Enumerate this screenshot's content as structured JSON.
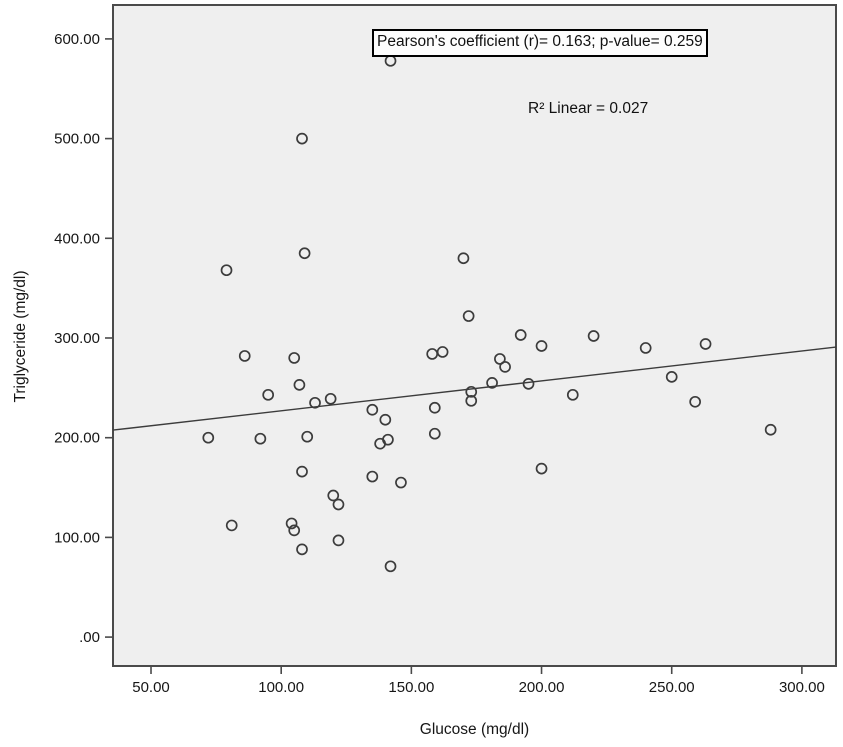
{
  "figure": {
    "annotations": {
      "pearson": "Pearson's coefficient (r)= 0.163; p-value= 0.259",
      "r_squared": "R² Linear = 0.027"
    }
  },
  "chart_data": {
    "type": "scatter",
    "title": "",
    "xlabel": "Glucose (mg/dl)",
    "ylabel": "Triglyceride (mg/dl)",
    "xlim": [
      35.4,
      313.1
    ],
    "ylim": [
      -29,
      634
    ],
    "grid": false,
    "legend": null,
    "x_ticks": {
      "values": [
        50,
        100,
        150,
        200,
        250,
        300
      ],
      "labels": [
        "50.00",
        "100.00",
        "150.00",
        "200.00",
        "250.00",
        "300.00"
      ]
    },
    "y_ticks": {
      "values": [
        600,
        500,
        400,
        300,
        200,
        100,
        0
      ],
      "labels": [
        "600.00",
        "500.00",
        "400.00",
        "300.00",
        "200.00",
        "100.00",
        ".00"
      ]
    },
    "points": [
      [
        142,
        578
      ],
      [
        108,
        500
      ],
      [
        109,
        385
      ],
      [
        79,
        368
      ],
      [
        170,
        380
      ],
      [
        172,
        322
      ],
      [
        86,
        282
      ],
      [
        105,
        280
      ],
      [
        158,
        284
      ],
      [
        162,
        286
      ],
      [
        107,
        253
      ],
      [
        95,
        243
      ],
      [
        113,
        235
      ],
      [
        119,
        239
      ],
      [
        173,
        246
      ],
      [
        173,
        237
      ],
      [
        135,
        228
      ],
      [
        140,
        218
      ],
      [
        159,
        230
      ],
      [
        159,
        204
      ],
      [
        72,
        200
      ],
      [
        92,
        199
      ],
      [
        110,
        201
      ],
      [
        138,
        194
      ],
      [
        141,
        198
      ],
      [
        108,
        166
      ],
      [
        135,
        161
      ],
      [
        146,
        155
      ],
      [
        120,
        142
      ],
      [
        122,
        133
      ],
      [
        81,
        112
      ],
      [
        104,
        114
      ],
      [
        105,
        107
      ],
      [
        122,
        97
      ],
      [
        108,
        88
      ],
      [
        142,
        71
      ],
      [
        192,
        303
      ],
      [
        200,
        292
      ],
      [
        220,
        302
      ],
      [
        240,
        290
      ],
      [
        263,
        294
      ],
      [
        184,
        279
      ],
      [
        186,
        271
      ],
      [
        181,
        255
      ],
      [
        195,
        254
      ],
      [
        212,
        243
      ],
      [
        250,
        261
      ],
      [
        259,
        236
      ],
      [
        288,
        208
      ],
      [
        200,
        169
      ]
    ],
    "trendline": {
      "x1": 35.4,
      "y1": 207.6,
      "x2": 313.1,
      "y2": 290.9,
      "pearson_r": 0.163,
      "p_value": 0.259,
      "r_squared_linear": 0.027
    },
    "stats_box_text": "Pearson's coefficient (r)= 0.163; p-value= 0.259",
    "r2_label_text": "R² Linear = 0.027",
    "colors": {
      "plot_bg": "#efefef",
      "frame": "#4a4a4a",
      "marker": "#3c3c3c",
      "trend_line": "#3c3c3c",
      "text": "#161616"
    }
  }
}
